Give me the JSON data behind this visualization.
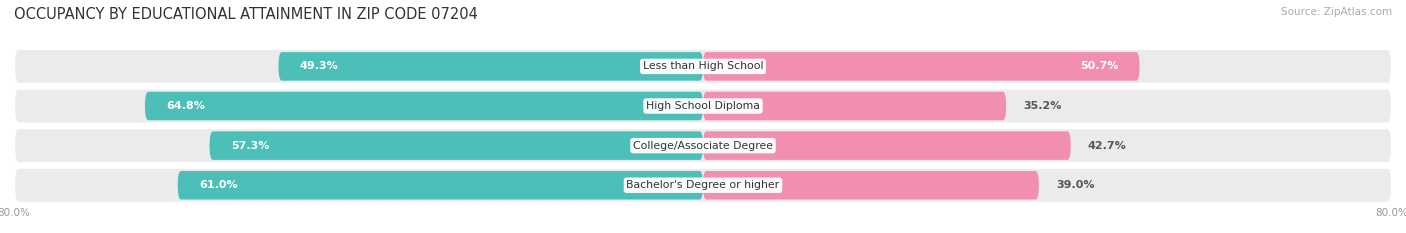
{
  "title": "OCCUPANCY BY EDUCATIONAL ATTAINMENT IN ZIP CODE 07204",
  "source": "Source: ZipAtlas.com",
  "categories": [
    "Less than High School",
    "High School Diploma",
    "College/Associate Degree",
    "Bachelor's Degree or higher"
  ],
  "owner_values": [
    49.3,
    64.8,
    57.3,
    61.0
  ],
  "renter_values": [
    50.7,
    35.2,
    42.7,
    39.0
  ],
  "owner_color": "#4BBFB8",
  "renter_color": "#F28FAE",
  "row_bg_color": "#EBEBEB",
  "title_fontsize": 10.5,
  "source_fontsize": 7.5,
  "value_fontsize": 8,
  "cat_fontsize": 7.8,
  "legend_fontsize": 8,
  "background_color": "#FFFFFF",
  "axis_bg_color": "#FFFFFF",
  "xlim_left": -80.0,
  "xlim_right": 80.0,
  "tick_label_color": "#999999",
  "tick_fontsize": 7.5
}
